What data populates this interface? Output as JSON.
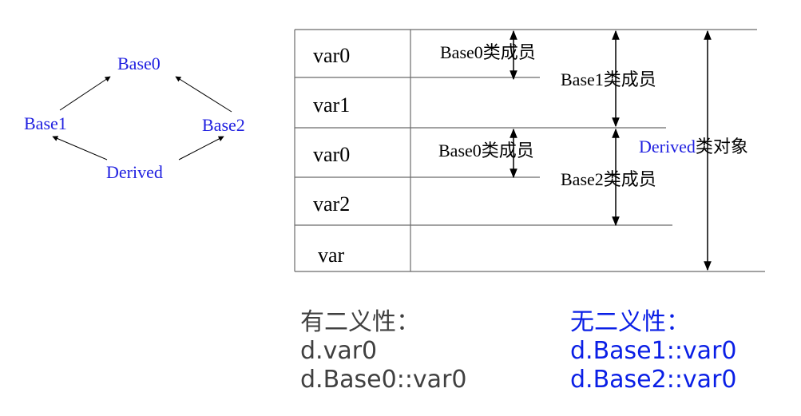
{
  "colors": {
    "node_text": "#1f1fe0",
    "line": "#000000",
    "table_border": "#6b6b6b",
    "ambiguous_text": "#404040",
    "unambiguous_text": "#0a1fe6"
  },
  "hierarchy": {
    "base0": "Base0",
    "base1": "Base1",
    "base2": "Base2",
    "derived": "Derived"
  },
  "layout_table": {
    "rows": [
      "var0",
      "var1",
      "var0",
      "var2",
      "var"
    ]
  },
  "members": {
    "base0_first": "Base0类成员",
    "base1": "Base1类成员",
    "base0_second": "Base0类成员",
    "base2": "Base2类成员",
    "derived_prefix": "Derived",
    "derived_suffix": "类对象"
  },
  "ambiguous": {
    "title": "有二义性：",
    "line1": "d.var0",
    "line2": "d.Base0::var0"
  },
  "unambiguous": {
    "title": "无二义性：",
    "line1": "d.Base1::var0",
    "line2": "d.Base2::var0"
  }
}
